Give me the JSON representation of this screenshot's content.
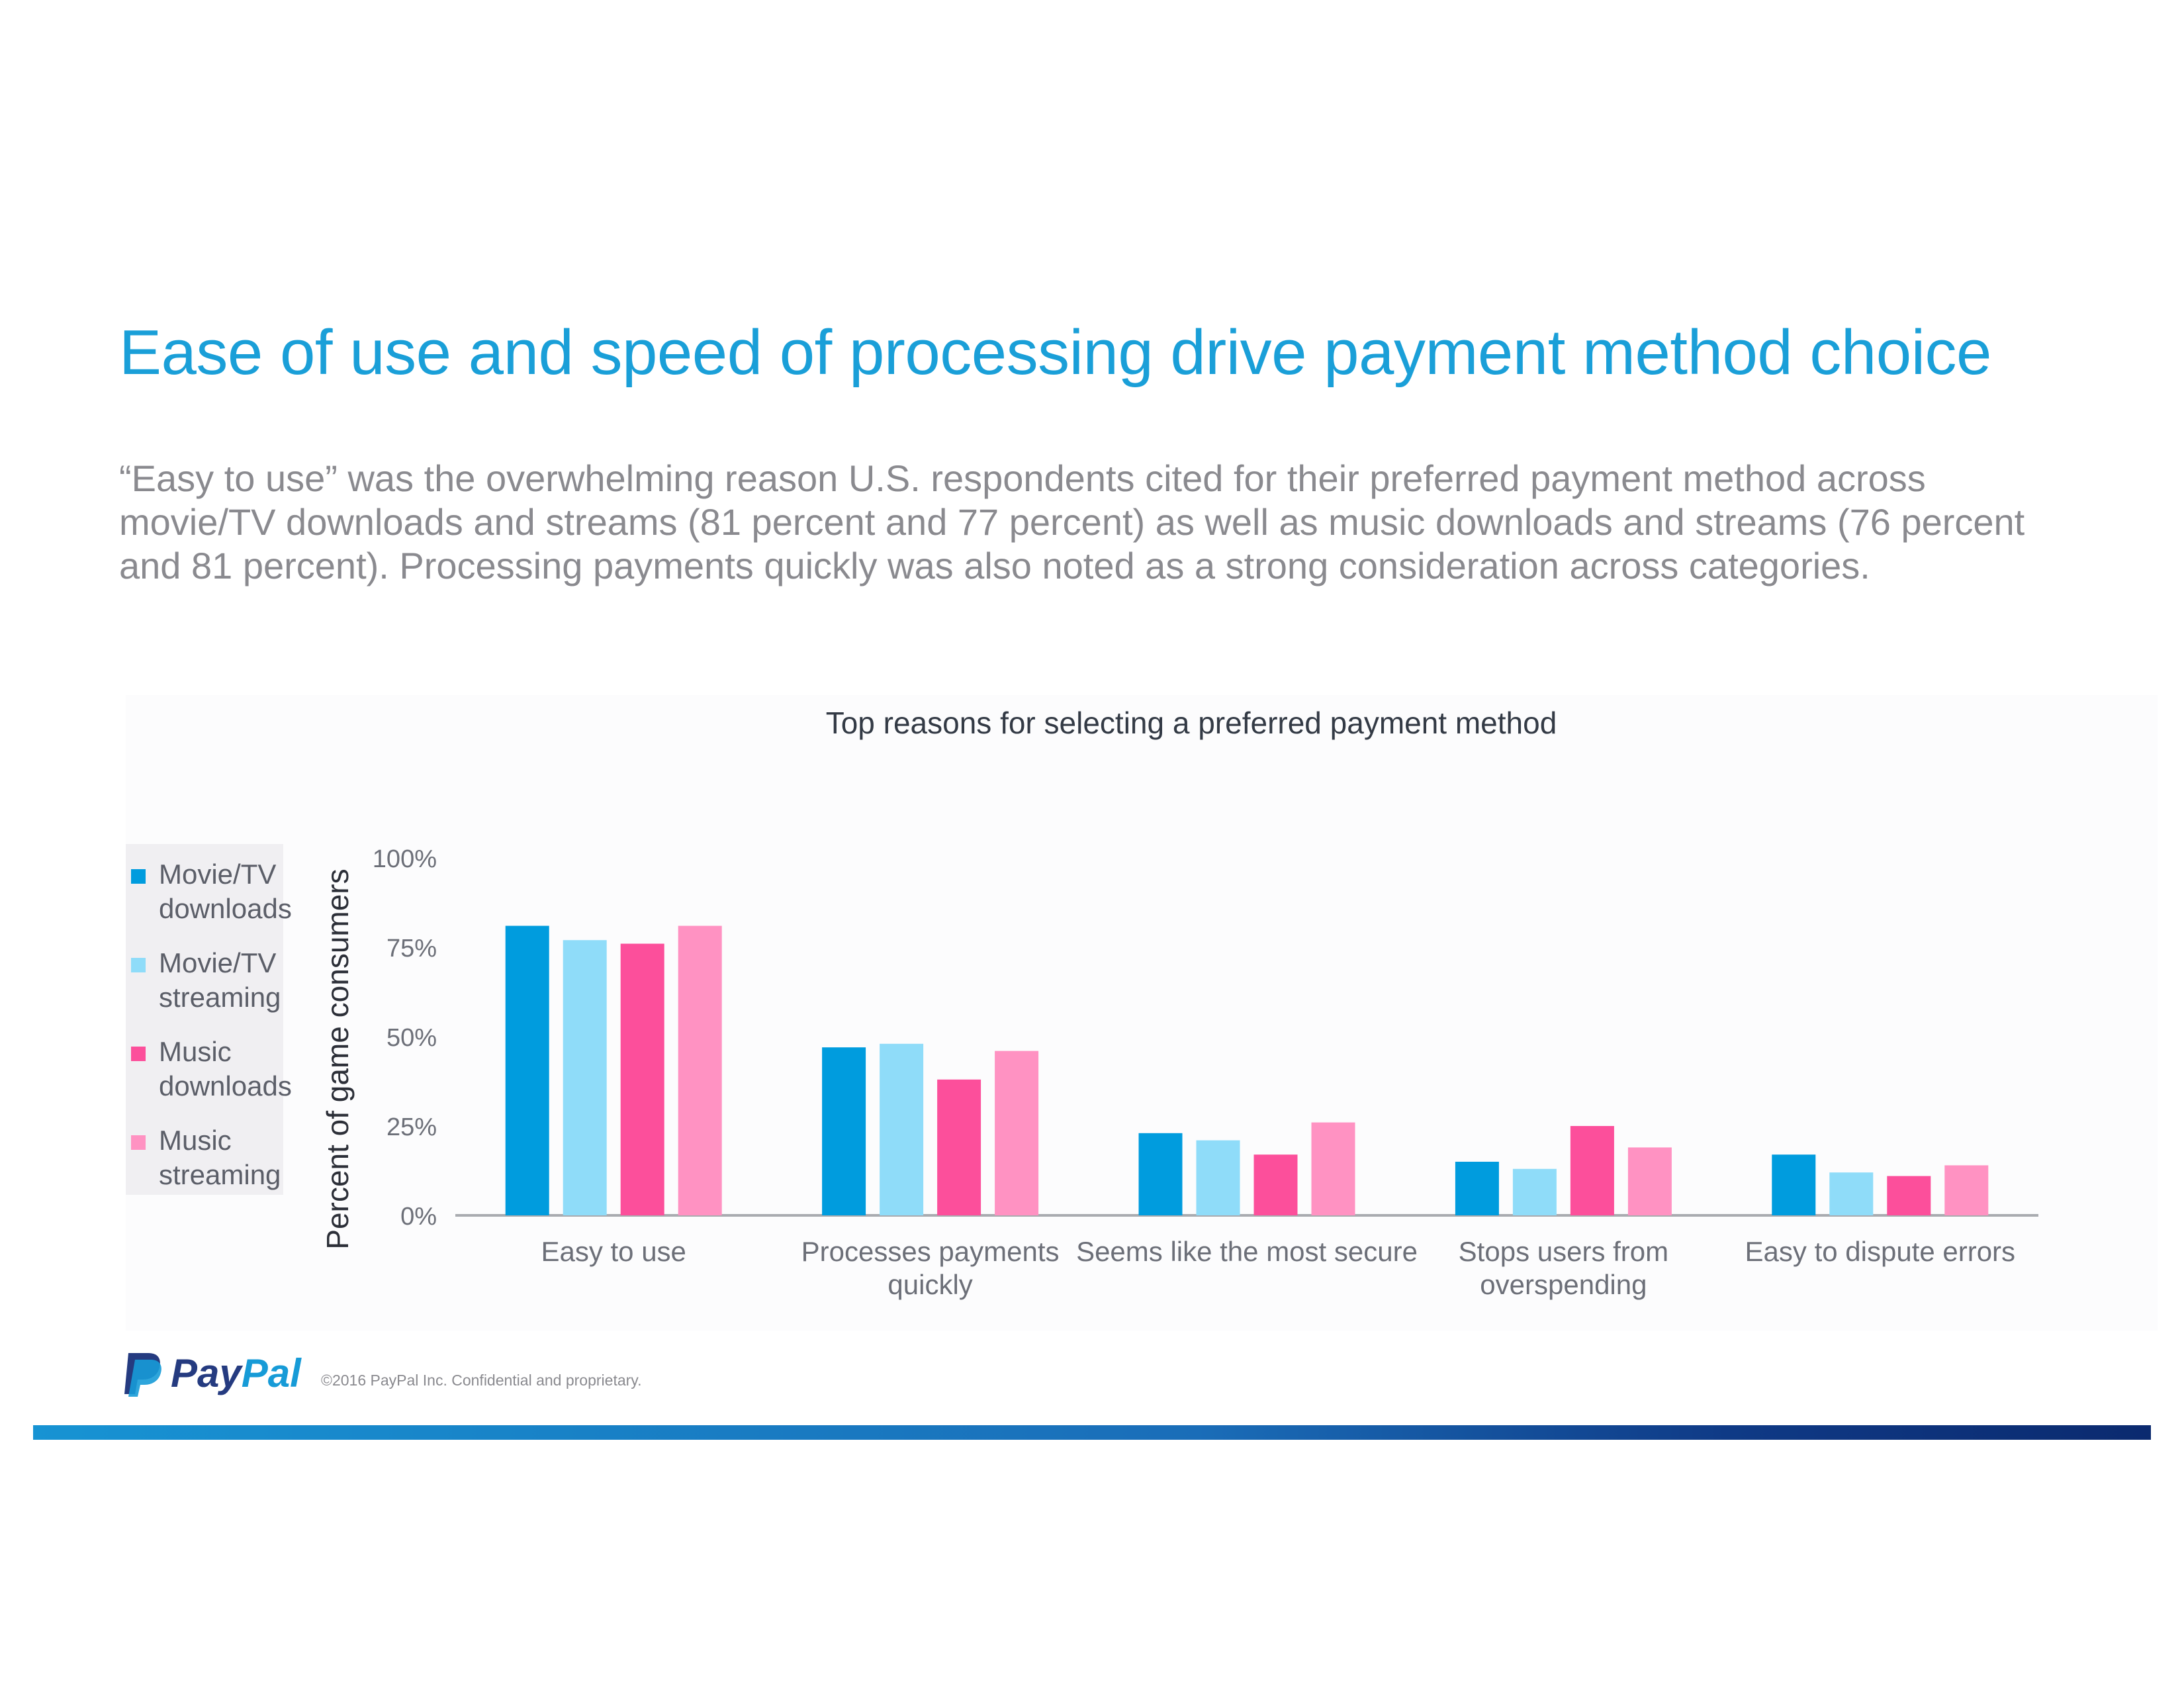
{
  "title": "Ease of use and speed of processing drive payment method choice",
  "subtitle": "“Easy to use” was the overwhelming reason U.S. respondents cited for their preferred payment method across movie/TV downloads and streams (81 percent and 77 percent) as well as music downloads and streams (76 percent and 81 percent). Processing payments quickly was also noted as a strong consideration across categories.",
  "chart_data": {
    "type": "bar",
    "title": "Top reasons for selecting a preferred payment method",
    "xlabel": "",
    "ylabel": "Percent of game consumers",
    "ylim": [
      0,
      100
    ],
    "yticks": [
      "0%",
      "25%",
      "50%",
      "75%",
      "100%"
    ],
    "ytick_values": [
      0,
      25,
      50,
      75,
      100
    ],
    "categories": [
      "Easy to use",
      "Processes payments quickly",
      "Seems like the most secure",
      "Stops users from overspending",
      "Easy to dispute errors"
    ],
    "category_lines": [
      [
        "Easy to use"
      ],
      [
        "Processes payments",
        "quickly"
      ],
      [
        "Seems like the most secure"
      ],
      [
        "Stops users from",
        "overspending"
      ],
      [
        "Easy to dispute errors"
      ]
    ],
    "series": [
      {
        "name": "Movie/TV downloads",
        "legend_lines": [
          "Movie/TV",
          "downloads"
        ],
        "color": "#009cde",
        "values": [
          81,
          47,
          23,
          15,
          17
        ]
      },
      {
        "name": "Movie/TV streaming",
        "legend_lines": [
          "Movie/TV",
          "streaming"
        ],
        "color": "#8fdcf9",
        "values": [
          77,
          48,
          21,
          13,
          12
        ]
      },
      {
        "name": "Music downloads",
        "legend_lines": [
          "Music",
          "downloads"
        ],
        "color": "#fc4f9b",
        "values": [
          76,
          38,
          17,
          25,
          11
        ]
      },
      {
        "name": "Music streaming",
        "legend_lines": [
          "Music",
          "streaming"
        ],
        "color": "#ff92c2",
        "values": [
          81,
          46,
          26,
          19,
          14
        ]
      }
    ],
    "grid": false,
    "legend_position": "left"
  },
  "footer": {
    "logo_pay": "Pay",
    "logo_pal": "Pal",
    "copyright": "©2016 PayPal Inc. Confidential and proprietary."
  }
}
